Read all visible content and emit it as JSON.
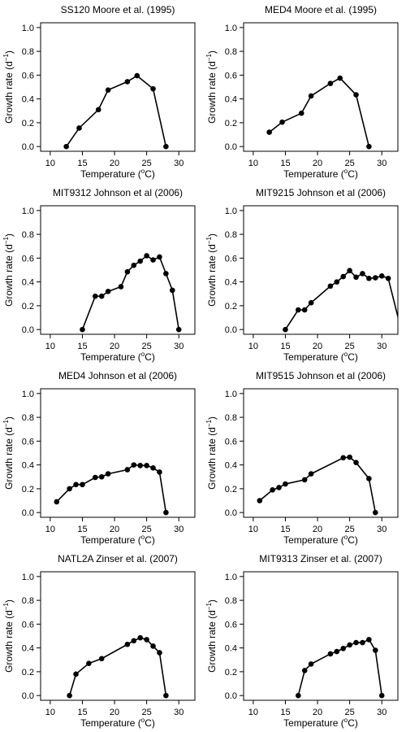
{
  "figure": {
    "xlabel": "Temperature (",
    "xlabel_sup": "o",
    "xlabel_unit": "C)",
    "ylabel": "Growth rate (d",
    "ylabel_sup": "−1",
    "ylabel_end": ")"
  },
  "chart_data": [
    {
      "type": "line",
      "title": "SS120 Moore et al. (1995)",
      "xlim": [
        8.5,
        32.5
      ],
      "ylim": [
        -0.04,
        1.04
      ],
      "xticks": [
        10,
        15,
        20,
        25,
        30
      ],
      "yticks": [
        0.0,
        0.2,
        0.4,
        0.6,
        0.8,
        1.0
      ],
      "x": [
        12.5,
        14.5,
        17.5,
        19,
        22,
        23.5,
        26,
        28
      ],
      "y": [
        0.0,
        0.155,
        0.31,
        0.475,
        0.545,
        0.595,
        0.485,
        0.0
      ]
    },
    {
      "type": "line",
      "title": "MED4 Moore et al. (1995)",
      "xlim": [
        8.5,
        32.5
      ],
      "ylim": [
        -0.04,
        1.04
      ],
      "xticks": [
        10,
        15,
        20,
        25,
        30
      ],
      "yticks": [
        0.0,
        0.2,
        0.4,
        0.6,
        0.8,
        1.0
      ],
      "x": [
        12.5,
        14.5,
        17.5,
        19,
        22,
        23.5,
        26,
        28
      ],
      "y": [
        0.12,
        0.205,
        0.28,
        0.425,
        0.53,
        0.575,
        0.435,
        0.0
      ]
    },
    {
      "type": "line",
      "title": "MIT9312 Johnson et al (2006)",
      "xlim": [
        8.5,
        32.5
      ],
      "ylim": [
        -0.04,
        1.04
      ],
      "xticks": [
        10,
        15,
        20,
        25,
        30
      ],
      "yticks": [
        0.0,
        0.2,
        0.4,
        0.6,
        0.8,
        1.0
      ],
      "x": [
        15,
        17,
        18,
        19,
        21,
        22,
        23,
        24,
        25,
        26,
        27,
        28,
        29,
        30
      ],
      "y": [
        0.0,
        0.28,
        0.28,
        0.32,
        0.36,
        0.485,
        0.54,
        0.575,
        0.62,
        0.585,
        0.61,
        0.47,
        0.33,
        0.0
      ]
    },
    {
      "type": "line",
      "title": "MIT9215 Johnson et al (2006)",
      "xlim": [
        8.5,
        32.5
      ],
      "ylim": [
        -0.04,
        1.04
      ],
      "xticks": [
        10,
        15,
        20,
        25,
        30
      ],
      "yticks": [
        0.0,
        0.2,
        0.4,
        0.6,
        0.8,
        1.0
      ],
      "x": [
        15,
        17,
        18,
        19,
        22,
        23,
        24,
        25,
        26,
        27,
        28,
        29,
        30,
        31,
        33
      ],
      "y": [
        0.0,
        0.165,
        0.165,
        0.225,
        0.365,
        0.4,
        0.445,
        0.495,
        0.44,
        0.47,
        0.43,
        0.435,
        0.45,
        0.43,
        0.0
      ]
    },
    {
      "type": "line",
      "title": "MED4 Johnson et al (2006)",
      "xlim": [
        8.5,
        32.5
      ],
      "ylim": [
        -0.04,
        1.04
      ],
      "xticks": [
        10,
        15,
        20,
        25,
        30
      ],
      "yticks": [
        0.0,
        0.2,
        0.4,
        0.6,
        0.8,
        1.0
      ],
      "x": [
        11,
        13,
        14,
        15,
        17,
        18,
        19,
        22,
        23,
        24,
        25,
        26,
        27,
        28
      ],
      "y": [
        0.09,
        0.2,
        0.235,
        0.235,
        0.295,
        0.3,
        0.325,
        0.36,
        0.4,
        0.395,
        0.395,
        0.375,
        0.34,
        0.0
      ]
    },
    {
      "type": "line",
      "title": "MIT9515 Johnson et al (2006)",
      "xlim": [
        8.5,
        32.5
      ],
      "ylim": [
        -0.04,
        1.04
      ],
      "xticks": [
        10,
        15,
        20,
        25,
        30
      ],
      "yticks": [
        0.0,
        0.2,
        0.4,
        0.6,
        0.8,
        1.0
      ],
      "x": [
        11,
        13,
        14,
        15,
        18,
        19,
        24,
        25,
        26,
        28,
        29
      ],
      "y": [
        0.1,
        0.19,
        0.21,
        0.24,
        0.275,
        0.325,
        0.46,
        0.465,
        0.42,
        0.285,
        0.0
      ]
    },
    {
      "type": "line",
      "title": "NATL2A Zinser et al.  (2007)",
      "xlim": [
        8.5,
        32.5
      ],
      "ylim": [
        -0.04,
        1.04
      ],
      "xticks": [
        10,
        15,
        20,
        25,
        30
      ],
      "yticks": [
        0.0,
        0.2,
        0.4,
        0.6,
        0.8,
        1.0
      ],
      "x": [
        13,
        14,
        16,
        18,
        22,
        23,
        24,
        25,
        26,
        27,
        28
      ],
      "y": [
        0.0,
        0.18,
        0.27,
        0.31,
        0.43,
        0.46,
        0.485,
        0.47,
        0.415,
        0.36,
        0.0
      ]
    },
    {
      "type": "line",
      "title": "MIT9313 Zinser et al.  (2007)",
      "xlim": [
        8.5,
        32.5
      ],
      "ylim": [
        -0.04,
        1.04
      ],
      "xticks": [
        10,
        15,
        20,
        25,
        30
      ],
      "yticks": [
        0.0,
        0.2,
        0.4,
        0.6,
        0.8,
        1.0
      ],
      "x": [
        17,
        18,
        19,
        22,
        23,
        24,
        25,
        26,
        27,
        28,
        29,
        30
      ],
      "y": [
        0.0,
        0.21,
        0.265,
        0.35,
        0.37,
        0.395,
        0.425,
        0.445,
        0.445,
        0.47,
        0.38,
        0.0
      ]
    }
  ]
}
